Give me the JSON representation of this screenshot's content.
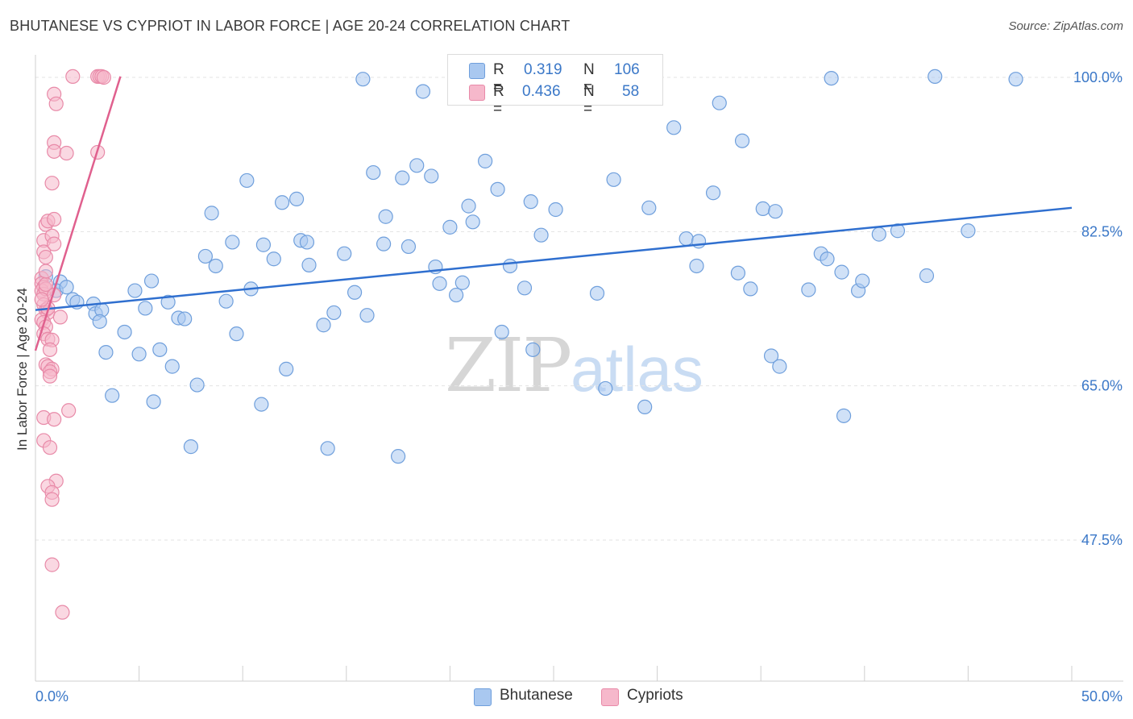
{
  "header": {
    "title": "BHUTANESE VS CYPRIOT IN LABOR FORCE | AGE 20-24 CORRELATION CHART",
    "source": "Source: ZipAtlas.com"
  },
  "watermark": {
    "zip": "ZIP",
    "atlas": "atlas"
  },
  "legend_top": {
    "rows": [
      {
        "r_label": "R =",
        "r_value": "0.319",
        "n_label": "N =",
        "n_value": "106",
        "color": "#a9c8f0",
        "border": "#6f9fdc"
      },
      {
        "r_label": "R =",
        "r_value": "0.436",
        "n_label": "N =",
        "n_value": "58",
        "color": "#f6b8cb",
        "border": "#e88aa8"
      }
    ]
  },
  "legend_bottom": {
    "items": [
      {
        "label": "Bhutanese",
        "color": "#a9c8f0",
        "border": "#6f9fdc"
      },
      {
        "label": "Cypriots",
        "color": "#f6b8cb",
        "border": "#e88aa8"
      }
    ]
  },
  "colors": {
    "blue_fill": "#a9c8f0",
    "blue_stroke": "#6f9fdc",
    "blue_line": "#2f6fcf",
    "pink_fill": "#f6b8cb",
    "pink_stroke": "#e88aa8",
    "pink_line": "#e0608e",
    "tick_label": "#3b78c8",
    "grid": "#e3e3e3"
  },
  "chart_data": {
    "type": "scatter",
    "title": "BHUTANESE VS CYPRIOT IN LABOR FORCE | AGE 20-24 CORRELATION CHART",
    "xlabel": "",
    "ylabel": "In Labor Force | Age 20-24",
    "xlim": [
      0,
      50
    ],
    "ylim": [
      31,
      102
    ],
    "x_tick_labels": [
      {
        "value": 0,
        "label": "0.0%"
      },
      {
        "value": 50,
        "label": "50.0%"
      }
    ],
    "y_tick_labels": [
      {
        "value": 100,
        "label": "100.0%"
      },
      {
        "value": 82.5,
        "label": "82.5%"
      },
      {
        "value": 65,
        "label": "65.0%"
      },
      {
        "value": 47.5,
        "label": "47.5%"
      }
    ],
    "grid": "horizontal dashed",
    "legend_placement": "top-center and bottom",
    "series": [
      {
        "name": "Bhutanese",
        "points": [
          [
            0.5,
            77.4
          ],
          [
            1.2,
            76.8
          ],
          [
            1.0,
            75.8
          ],
          [
            1.5,
            76.2
          ],
          [
            1.8,
            74.8
          ],
          [
            2.0,
            74.5
          ],
          [
            2.8,
            74.3
          ],
          [
            2.9,
            73.2
          ],
          [
            3.2,
            73.6
          ],
          [
            3.1,
            72.3
          ],
          [
            4.3,
            71.1
          ],
          [
            3.4,
            68.8
          ],
          [
            3.7,
            63.9
          ],
          [
            4.8,
            75.8
          ],
          [
            5.0,
            68.6
          ],
          [
            5.3,
            73.8
          ],
          [
            5.6,
            76.9
          ],
          [
            5.7,
            63.2
          ],
          [
            6.0,
            69.1
          ],
          [
            6.4,
            74.5
          ],
          [
            6.6,
            67.2
          ],
          [
            6.9,
            72.7
          ],
          [
            7.2,
            72.6
          ],
          [
            7.5,
            58.1
          ],
          [
            7.8,
            65.1
          ],
          [
            8.2,
            79.7
          ],
          [
            8.5,
            84.6
          ],
          [
            8.7,
            78.6
          ],
          [
            9.2,
            74.6
          ],
          [
            9.5,
            81.3
          ],
          [
            9.7,
            70.9
          ],
          [
            10.2,
            88.3
          ],
          [
            10.4,
            76.0
          ],
          [
            10.9,
            62.9
          ],
          [
            11.0,
            81.0
          ],
          [
            11.5,
            79.4
          ],
          [
            11.9,
            85.8
          ],
          [
            12.1,
            66.9
          ],
          [
            12.6,
            86.2
          ],
          [
            12.8,
            81.5
          ],
          [
            13.1,
            81.3
          ],
          [
            13.2,
            78.7
          ],
          [
            13.9,
            71.9
          ],
          [
            14.1,
            57.9
          ],
          [
            14.4,
            73.3
          ],
          [
            14.9,
            80.0
          ],
          [
            15.4,
            75.6
          ],
          [
            15.8,
            99.8
          ],
          [
            16.0,
            73.0
          ],
          [
            16.3,
            89.2
          ],
          [
            16.8,
            81.1
          ],
          [
            16.9,
            84.2
          ],
          [
            17.5,
            57.0
          ],
          [
            17.7,
            88.6
          ],
          [
            18.0,
            80.8
          ],
          [
            18.4,
            90.0
          ],
          [
            18.7,
            98.4
          ],
          [
            19.1,
            88.8
          ],
          [
            19.3,
            78.5
          ],
          [
            19.5,
            76.6
          ],
          [
            20.0,
            83.0
          ],
          [
            20.3,
            75.3
          ],
          [
            20.6,
            76.7
          ],
          [
            20.9,
            85.4
          ],
          [
            21.1,
            83.6
          ],
          [
            21.7,
            90.5
          ],
          [
            22.3,
            87.3
          ],
          [
            22.5,
            71.1
          ],
          [
            22.9,
            78.6
          ],
          [
            23.6,
            76.1
          ],
          [
            23.9,
            85.9
          ],
          [
            24.0,
            69.1
          ],
          [
            24.4,
            82.1
          ],
          [
            25.1,
            85.0
          ],
          [
            27.1,
            75.5
          ],
          [
            27.5,
            64.7
          ],
          [
            27.9,
            88.4
          ],
          [
            29.4,
            62.6
          ],
          [
            29.6,
            85.2
          ],
          [
            30.8,
            94.3
          ],
          [
            31.4,
            81.7
          ],
          [
            31.9,
            78.6
          ],
          [
            32.0,
            81.4
          ],
          [
            32.7,
            86.9
          ],
          [
            33.0,
            97.1
          ],
          [
            33.9,
            77.8
          ],
          [
            34.1,
            92.8
          ],
          [
            34.5,
            76.0
          ],
          [
            35.1,
            85.1
          ],
          [
            35.5,
            68.4
          ],
          [
            35.7,
            84.8
          ],
          [
            35.9,
            67.2
          ],
          [
            37.3,
            75.9
          ],
          [
            37.9,
            80.0
          ],
          [
            38.2,
            79.4
          ],
          [
            38.4,
            99.9
          ],
          [
            38.9,
            77.9
          ],
          [
            39.7,
            75.8
          ],
          [
            39.9,
            76.9
          ],
          [
            39.0,
            61.6
          ],
          [
            40.7,
            82.2
          ],
          [
            41.6,
            82.6
          ],
          [
            43.4,
            100.1
          ],
          [
            43.0,
            77.5
          ],
          [
            45.0,
            82.6
          ],
          [
            47.3,
            99.8
          ]
        ],
        "trend": {
          "x": [
            0,
            50
          ],
          "y": [
            73.6,
            85.2
          ]
        }
      },
      {
        "name": "Cypriots",
        "points": [
          [
            0.3,
            77.2
          ],
          [
            0.3,
            76.6
          ],
          [
            0.4,
            76.2
          ],
          [
            0.3,
            75.8
          ],
          [
            0.4,
            75.4
          ],
          [
            0.5,
            76.0
          ],
          [
            0.4,
            74.2
          ],
          [
            0.5,
            73.6
          ],
          [
            0.6,
            73.3
          ],
          [
            0.3,
            72.5
          ],
          [
            0.4,
            72.2
          ],
          [
            0.5,
            71.7
          ],
          [
            0.4,
            70.9
          ],
          [
            0.6,
            70.3
          ],
          [
            0.8,
            70.2
          ],
          [
            0.7,
            69.1
          ],
          [
            0.5,
            67.4
          ],
          [
            0.6,
            67.2
          ],
          [
            0.8,
            66.9
          ],
          [
            0.7,
            66.6
          ],
          [
            0.7,
            66.1
          ],
          [
            0.4,
            81.5
          ],
          [
            0.4,
            80.2
          ],
          [
            0.5,
            79.6
          ],
          [
            0.5,
            83.3
          ],
          [
            0.6,
            83.7
          ],
          [
            0.8,
            82.0
          ],
          [
            0.9,
            81.1
          ],
          [
            0.9,
            83.9
          ],
          [
            0.8,
            88.0
          ],
          [
            0.9,
            92.6
          ],
          [
            0.9,
            91.6
          ],
          [
            0.9,
            98.1
          ],
          [
            1.0,
            97.0
          ],
          [
            1.5,
            91.4
          ],
          [
            1.8,
            100.1
          ],
          [
            3.0,
            100.1
          ],
          [
            3.1,
            100.1
          ],
          [
            3.2,
            100.1
          ],
          [
            3.3,
            100.0
          ],
          [
            3.0,
            91.5
          ],
          [
            1.2,
            72.8
          ],
          [
            1.6,
            62.2
          ],
          [
            0.4,
            61.4
          ],
          [
            0.9,
            61.2
          ],
          [
            0.4,
            58.8
          ],
          [
            0.7,
            58.0
          ],
          [
            1.0,
            54.2
          ],
          [
            0.6,
            53.6
          ],
          [
            0.8,
            52.9
          ],
          [
            0.8,
            52.1
          ],
          [
            0.8,
            44.7
          ],
          [
            1.3,
            39.3
          ],
          [
            0.5,
            76.5
          ],
          [
            0.9,
            75.3
          ],
          [
            0.5,
            78.0
          ],
          [
            0.6,
            73.8
          ],
          [
            0.3,
            74.8
          ]
        ],
        "trend": {
          "x": [
            0.0,
            4.1
          ],
          "y": [
            69.0,
            100.1
          ]
        }
      }
    ]
  }
}
